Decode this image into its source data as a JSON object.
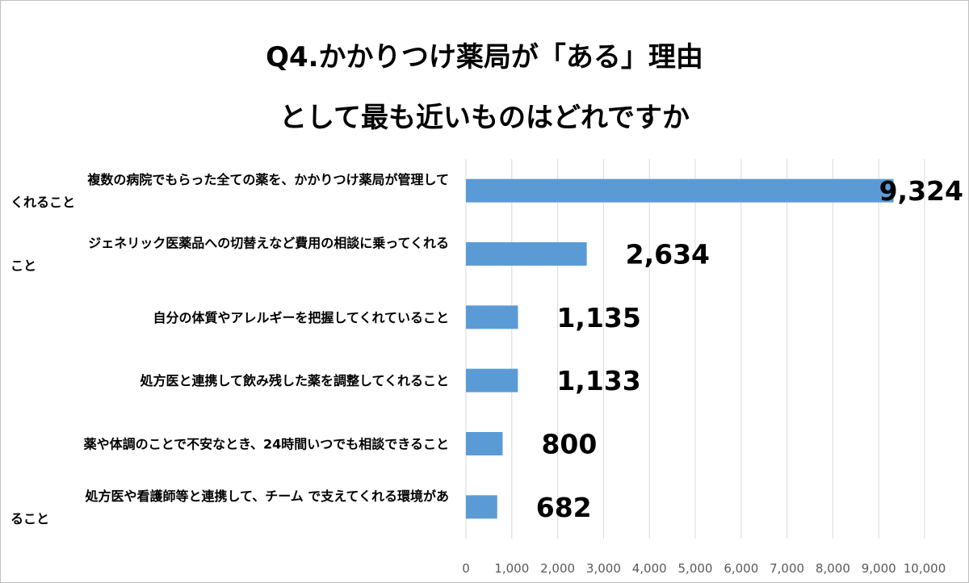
{
  "chart_data": {
    "type": "bar",
    "orientation": "horizontal",
    "title_lines": [
      "Q4.かかりつけ薬局が「ある」理由",
      "として最も近いものはどれですか"
    ],
    "categories": [
      [
        "複数の病院でもらった全ての薬を、かかりつけ薬局が管理して",
        "くれること"
      ],
      [
        "ジェネリック医薬品への切替えなど費用の相談に乗ってくれる",
        "こと"
      ],
      [
        "自分の体質やアレルギーを把握してくれていること"
      ],
      [
        "処方医と連携して飲み残した薬を調整してくれること"
      ],
      [
        "薬や体調のことで不安なとき、24時間いつでも相談できること"
      ],
      [
        "処方医や看護師等と連携して、チーム で支えてくれる環境があ",
        "ること"
      ]
    ],
    "values": [
      9324,
      2634,
      1135,
      1133,
      800,
      682
    ],
    "value_labels": [
      "9,324",
      "2,634",
      "1,135",
      "1,133",
      "800",
      "682"
    ],
    "xlim": [
      0,
      10000
    ],
    "x_ticks": [
      0,
      1000,
      2000,
      3000,
      4000,
      5000,
      6000,
      7000,
      8000,
      9000,
      10000
    ],
    "x_tick_labels": [
      "0",
      "1,000",
      "2,000",
      "3,000",
      "4,000",
      "5,000",
      "6,000",
      "7,000",
      "8,000",
      "9,000",
      "10,000"
    ],
    "grid": true,
    "legend": "none",
    "bar_color": "#5b9bd5",
    "grid_color": "#d9d9d9"
  }
}
